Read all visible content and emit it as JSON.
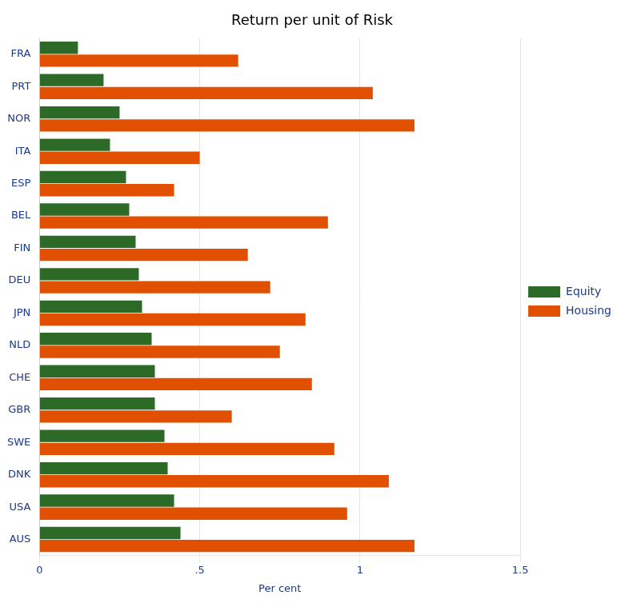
{
  "chart_data": {
    "type": "bar",
    "orientation": "horizontal",
    "title": "Return per unit of Risk",
    "xlabel": "Per cent",
    "categories": [
      "FRA",
      "PRT",
      "NOR",
      "ITA",
      "ESP",
      "BEL",
      "FIN",
      "DEU",
      "JPN",
      "NLD",
      "CHE",
      "GBR",
      "SWE",
      "DNK",
      "USA",
      "AUS"
    ],
    "series": [
      {
        "name": "Equity",
        "color": "#2d6a27",
        "values": [
          0.12,
          0.2,
          0.25,
          0.22,
          0.27,
          0.28,
          0.3,
          0.31,
          0.32,
          0.35,
          0.36,
          0.36,
          0.39,
          0.4,
          0.42,
          0.44
        ]
      },
      {
        "name": "Housing",
        "color": "#e05000",
        "values": [
          0.62,
          1.04,
          1.17,
          0.5,
          0.42,
          0.9,
          0.65,
          0.72,
          0.83,
          0.75,
          0.85,
          0.6,
          0.92,
          1.09,
          0.96,
          1.17
        ]
      }
    ],
    "xlim": [
      0,
      1.5
    ],
    "xticks": [
      0,
      {
        "value": 0.5,
        "label": ".5"
      },
      1,
      1.5
    ],
    "grid": "x",
    "legend": "right"
  }
}
